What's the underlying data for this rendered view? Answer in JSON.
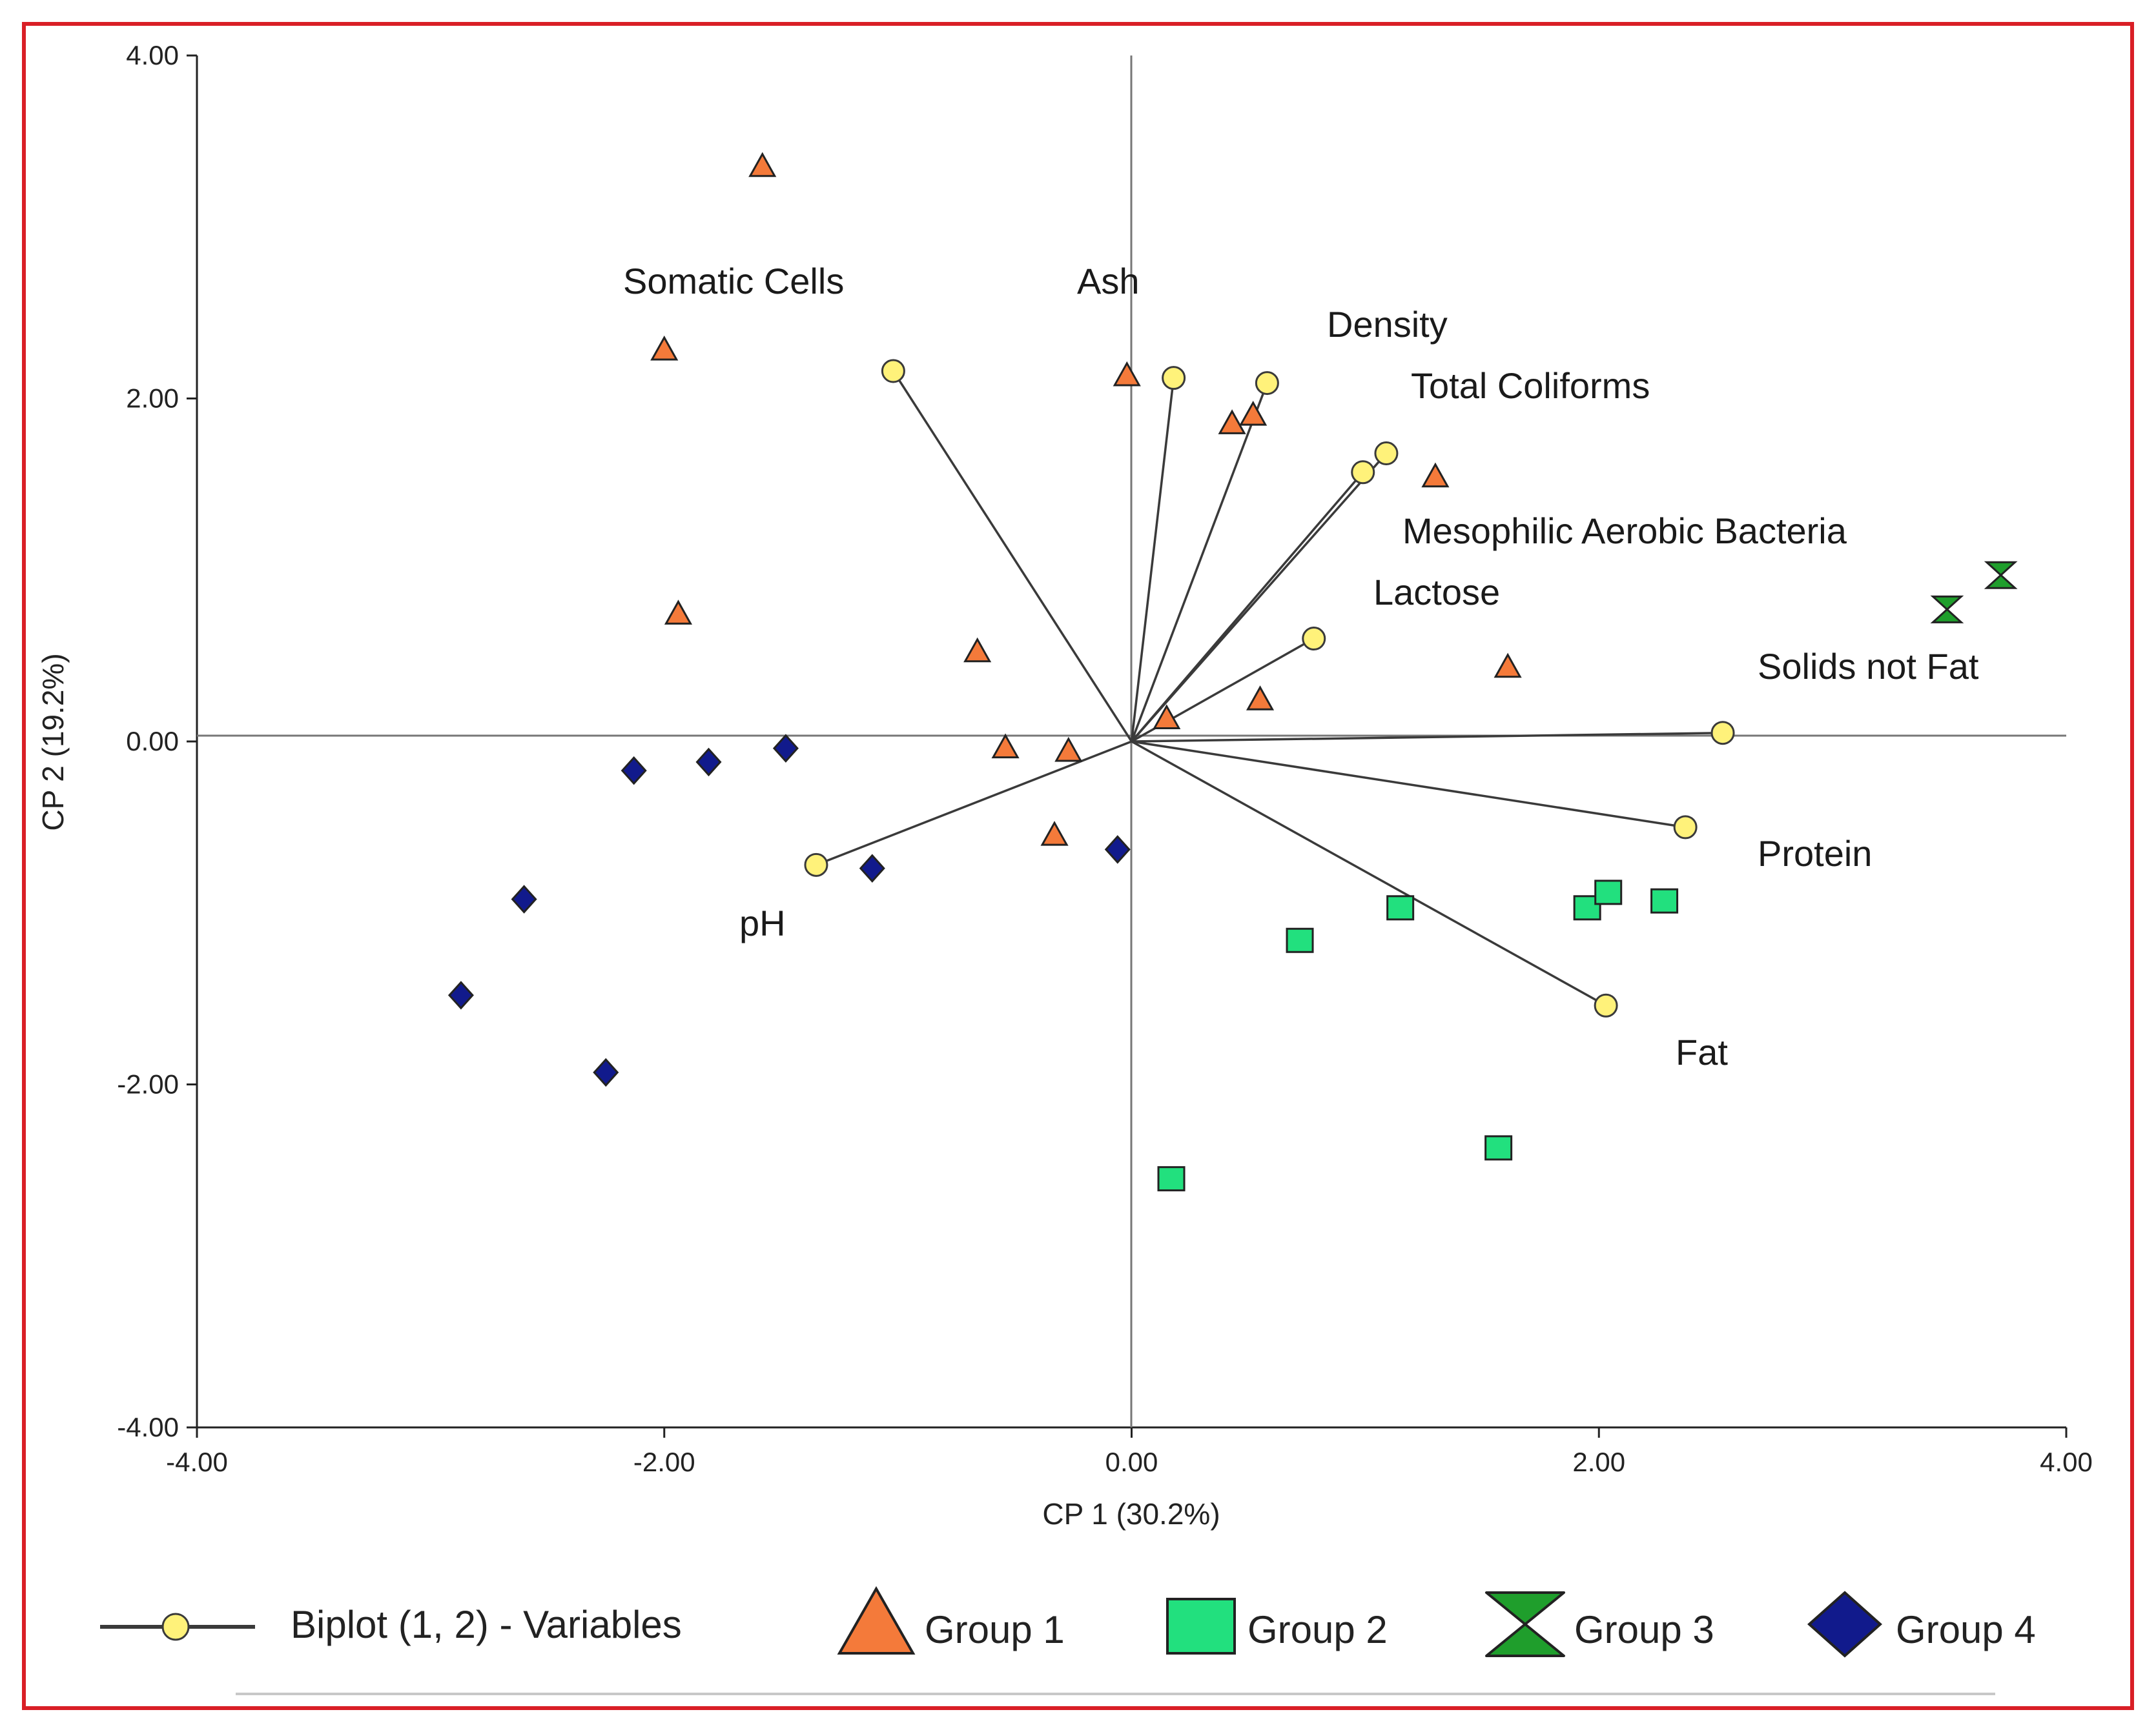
{
  "chart_data": {
    "type": "scatter",
    "title": "",
    "xlabel": "CP 1 (30.2%)",
    "ylabel": "CP 2 (19.2%)",
    "xlim": [
      -4.0,
      4.0
    ],
    "ylim": [
      -4.0,
      4.0
    ],
    "x_ticks": [
      "-4.00",
      "-2.00",
      "0.00",
      "2.00",
      "4.00"
    ],
    "y_ticks": [
      "4.00",
      "2.00",
      "0.00",
      "-2.00",
      "-4.00"
    ],
    "x_tick_values": [
      -4,
      -2,
      0,
      2,
      4
    ],
    "y_tick_values": [
      4,
      2,
      0,
      -2,
      -4
    ],
    "grid": false,
    "legend_position": "bottom",
    "biplot_variables": {
      "name": "Biplot (1, 2) - Variables",
      "vectors": [
        {
          "label": "Somatic Cells",
          "x": -1.02,
          "y": 2.16
        },
        {
          "label": "Ash",
          "x": 0.18,
          "y": 2.12
        },
        {
          "label": "Density",
          "x": 0.58,
          "y": 2.09
        },
        {
          "label": "Total Coliforms",
          "x": 1.09,
          "y": 1.68
        },
        {
          "label": "Mesophilic Aerobic Bacteria",
          "x": 0.99,
          "y": 1.57
        },
        {
          "label": "Lactose",
          "x": 0.78,
          "y": 0.6
        },
        {
          "label": "Solids not Fat",
          "x": 2.53,
          "y": 0.05
        },
        {
          "label": "Protein",
          "x": 2.37,
          "y": -0.5
        },
        {
          "label": "Fat",
          "x": 2.03,
          "y": -1.54
        },
        {
          "label": "pH",
          "x": -1.35,
          "y": -0.72
        }
      ]
    },
    "series": [
      {
        "name": "Group 1",
        "marker": "triangle",
        "color": "#f47a3a",
        "points": [
          [
            -1.58,
            3.35
          ],
          [
            -2.0,
            2.28
          ],
          [
            -0.02,
            2.13
          ],
          [
            0.43,
            1.85
          ],
          [
            0.52,
            1.9
          ],
          [
            1.3,
            1.54
          ],
          [
            -1.94,
            0.74
          ],
          [
            -0.66,
            0.52
          ],
          [
            1.61,
            0.43
          ],
          [
            0.55,
            0.24
          ],
          [
            0.15,
            0.13
          ],
          [
            -0.54,
            -0.04
          ],
          [
            -0.27,
            -0.06
          ],
          [
            -0.33,
            -0.55
          ]
        ]
      },
      {
        "name": "Group 2",
        "marker": "square",
        "color": "#22e07e",
        "points": [
          [
            0.72,
            -1.16
          ],
          [
            1.15,
            -0.97
          ],
          [
            1.95,
            -0.97
          ],
          [
            2.04,
            -0.88
          ],
          [
            2.28,
            -0.93
          ],
          [
            1.57,
            -2.37
          ],
          [
            0.17,
            -2.55
          ]
        ]
      },
      {
        "name": "Group 3",
        "marker": "hourglass",
        "color": "#1f9e2c",
        "points": [
          [
            3.72,
            0.97
          ],
          [
            3.49,
            0.77
          ]
        ]
      },
      {
        "name": "Group 4",
        "marker": "diamond",
        "color": "#111a8c",
        "points": [
          [
            -1.48,
            -0.04
          ],
          [
            -1.81,
            -0.12
          ],
          [
            -2.13,
            -0.17
          ],
          [
            -1.11,
            -0.74
          ],
          [
            -0.06,
            -0.63
          ],
          [
            -2.6,
            -0.92
          ],
          [
            -2.87,
            -1.48
          ],
          [
            -2.25,
            -1.93
          ]
        ]
      }
    ]
  },
  "colors": {
    "frame": "#d91f26",
    "axis": "#333333",
    "vector": "#3a3a3a",
    "variable_marker": "#fff27a"
  }
}
